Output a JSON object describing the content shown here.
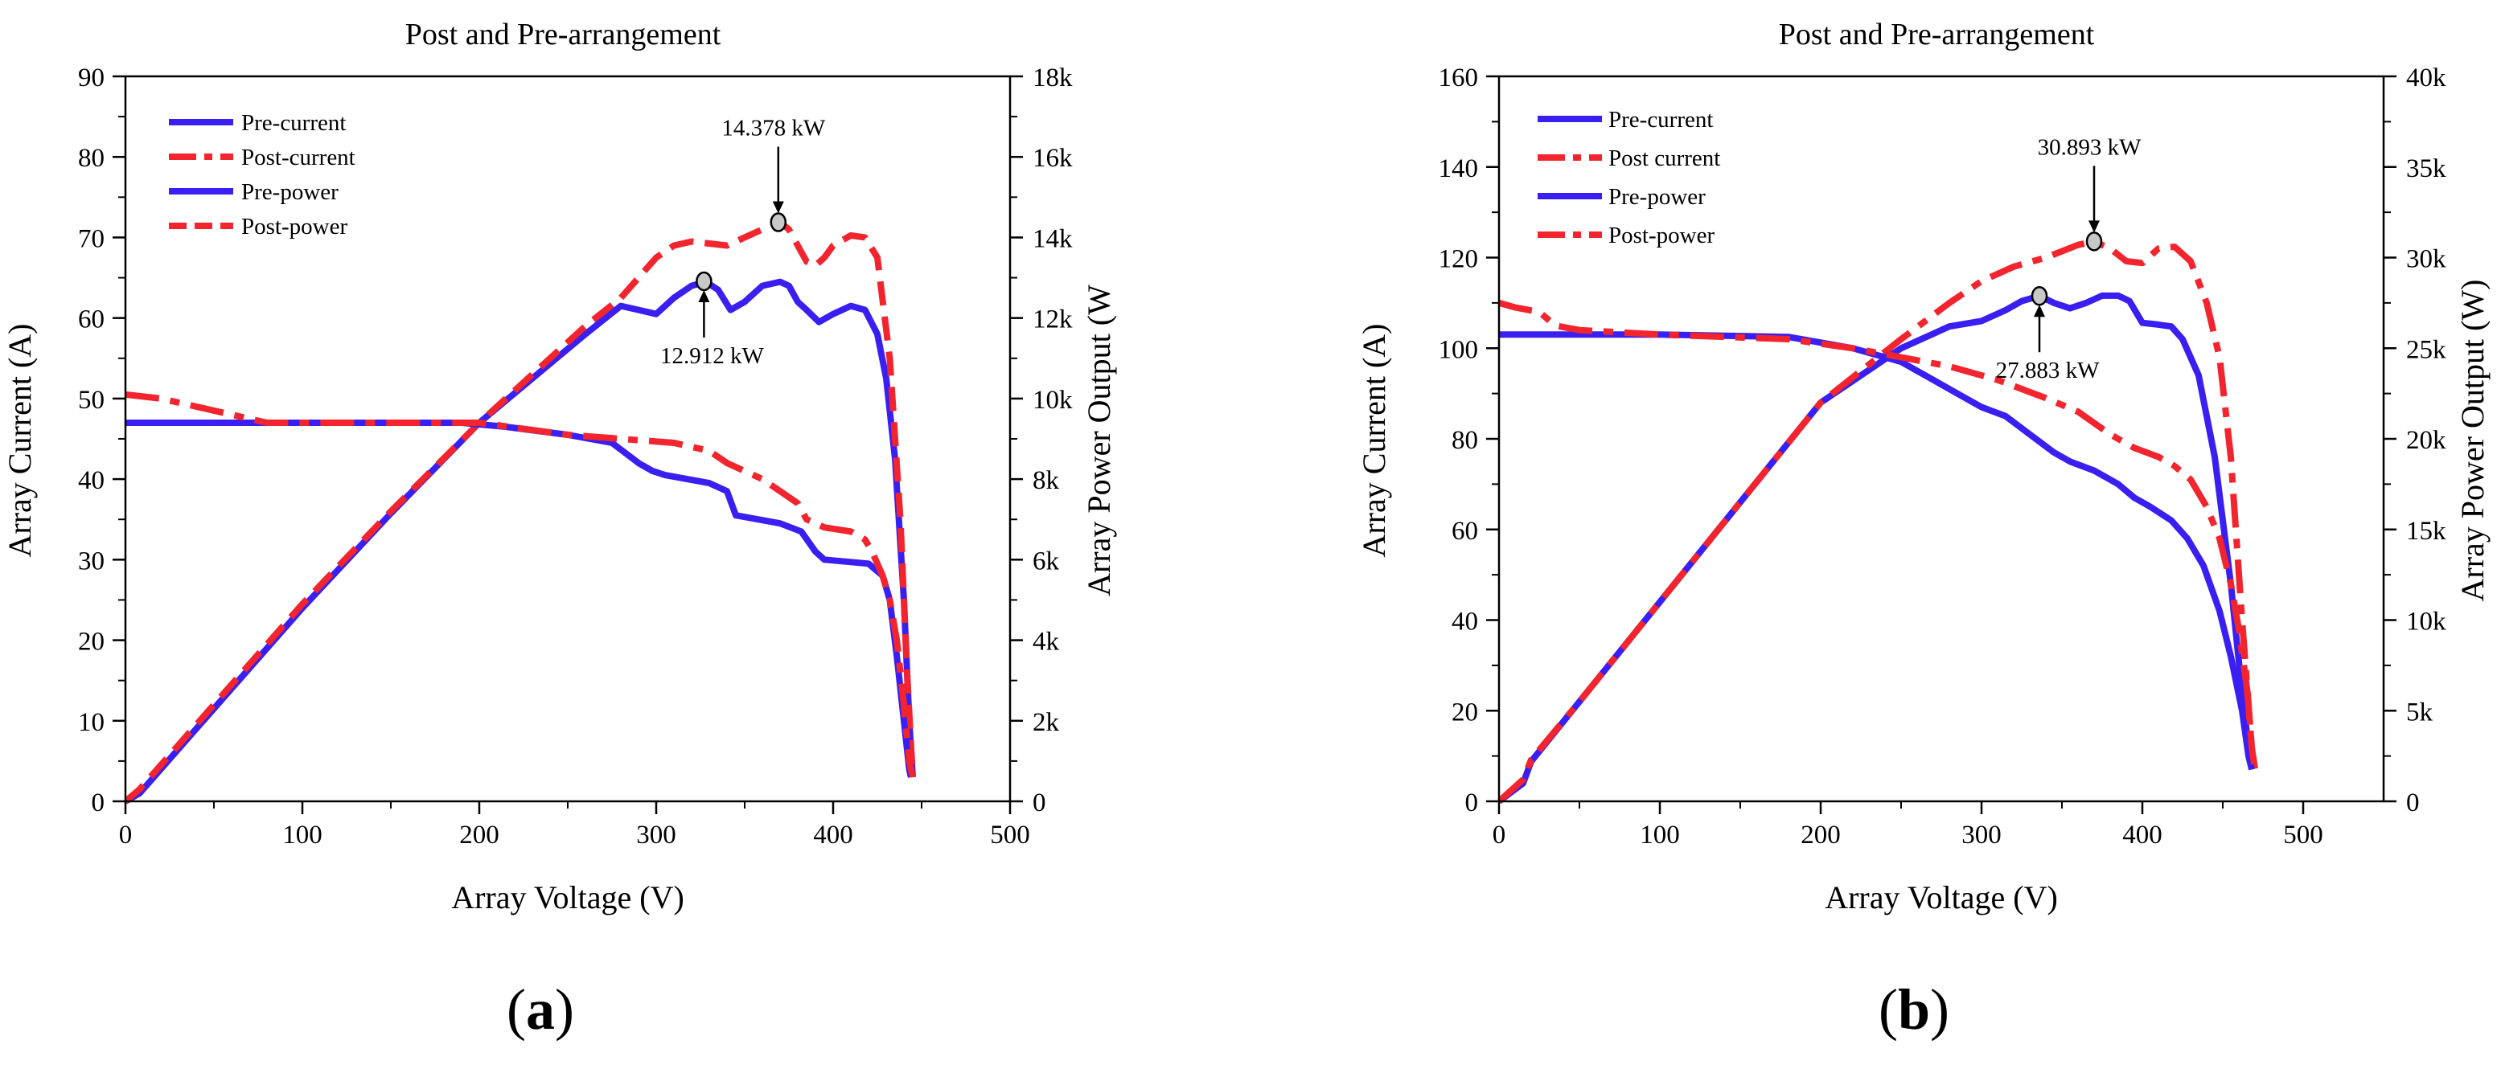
{
  "chart_data": [
    {
      "type": "line",
      "panel_label": {
        "open": "(",
        "letter": "a",
        "close": ")"
      },
      "title": "Post and Pre-arrangement",
      "xlabel": "Array Voltage (V)",
      "ylabel": "Array Current (A)",
      "y2label": "Array Power Output (W",
      "xlim": [
        0,
        500
      ],
      "ylim": [
        0,
        90
      ],
      "y2lim": [
        0,
        18000
      ],
      "xticks": [
        0,
        100,
        200,
        300,
        400,
        500
      ],
      "xtick_labels": [
        "0",
        "100",
        "200",
        "300",
        "400",
        "500"
      ],
      "yticks": [
        0,
        10,
        20,
        30,
        40,
        50,
        60,
        70,
        80,
        90
      ],
      "ytick_labels": [
        "0",
        "10",
        "20",
        "30",
        "40",
        "50",
        "60",
        "70",
        "80",
        "90"
      ],
      "y2ticks": [
        0,
        2000,
        4000,
        6000,
        8000,
        10000,
        12000,
        14000,
        16000,
        18000
      ],
      "y2tick_labels": [
        "0",
        "2k",
        "4k",
        "6k",
        "8k",
        "10k",
        "12k",
        "14k",
        "16k",
        "18k"
      ],
      "legend_position": "top-left",
      "series": [
        {
          "name": "Pre-current",
          "axis": "left",
          "color": "#3a1ff2",
          "style": "solid",
          "x": [
            0,
            100,
            190,
            215,
            250,
            275,
            290,
            298,
            305,
            330,
            340,
            345,
            370,
            382,
            390,
            395,
            420,
            428,
            432,
            436,
            440,
            443,
            444
          ],
          "y": [
            47,
            47,
            47,
            46.5,
            45.5,
            44.5,
            42,
            41,
            40.5,
            39.5,
            38.5,
            35.5,
            34.5,
            33.5,
            31,
            30,
            29.5,
            28,
            25,
            18,
            10,
            4,
            3
          ]
        },
        {
          "name": "Post-current",
          "axis": "left",
          "color": "#f2252e",
          "style": "dashdot",
          "x": [
            0,
            20,
            40,
            60,
            80,
            150,
            200,
            250,
            280,
            310,
            330,
            340,
            360,
            370,
            380,
            385,
            395,
            410,
            418,
            422,
            428,
            432,
            436,
            440,
            443,
            445
          ],
          "y": [
            50.5,
            50,
            49,
            48,
            47,
            47,
            47,
            45.5,
            45,
            44.5,
            43.5,
            42,
            40,
            38.5,
            37,
            35,
            34,
            33.5,
            32.5,
            31,
            28,
            25,
            20,
            12,
            5,
            3
          ]
        },
        {
          "name": "Pre-power",
          "axis": "right",
          "color": "#3a1ff2",
          "style": "solid",
          "x": [
            0,
            8,
            50,
            100,
            150,
            200,
            230,
            260,
            280,
            290,
            300,
            310,
            320,
            328,
            335,
            342,
            350,
            360,
            370,
            375,
            380,
            385,
            392,
            400,
            410,
            418,
            425,
            430,
            435,
            440,
            443,
            445
          ],
          "y": [
            0,
            200,
            2300,
            4800,
            7150,
            9400,
            10500,
            11600,
            12300,
            12200,
            12100,
            12500,
            12800,
            12900,
            12700,
            12200,
            12400,
            12800,
            12900,
            12800,
            12400,
            12200,
            11900,
            12100,
            12300,
            12200,
            11600,
            10500,
            8500,
            5000,
            2000,
            600
          ]
        },
        {
          "name": "Post-power",
          "axis": "right",
          "color": "#f2252e",
          "style": "dashed",
          "x": [
            0,
            8,
            50,
            100,
            150,
            200,
            230,
            260,
            280,
            290,
            300,
            310,
            320,
            330,
            340,
            350,
            360,
            370,
            375,
            380,
            385,
            390,
            395,
            400,
            410,
            418,
            425,
            432,
            438,
            442,
            445
          ],
          "y": [
            0,
            300,
            2400,
            4900,
            7200,
            9400,
            10600,
            11800,
            12500,
            13000,
            13500,
            13800,
            13900,
            13850,
            13800,
            14000,
            14200,
            14378,
            14200,
            13800,
            13400,
            13300,
            13500,
            13800,
            14050,
            14000,
            13500,
            11000,
            7000,
            3000,
            600
          ]
        }
      ],
      "annotations": [
        {
          "text": "14.378 kW",
          "x": 369,
          "y2": 14378,
          "label_position": "above"
        },
        {
          "text": "12.912 kW",
          "x": 327,
          "y2": 12912,
          "label_position": "below"
        }
      ]
    },
    {
      "type": "line",
      "panel_label": {
        "open": "(",
        "letter": "b",
        "close": ")"
      },
      "title": "Post and Pre-arrangement",
      "xlabel": "Array Voltage (V)",
      "ylabel": "Array Current (A)",
      "y2label": "Array Power Output (W)",
      "xlim": [
        0,
        550
      ],
      "ylim": [
        0,
        160
      ],
      "y2lim": [
        0,
        40000
      ],
      "xticks": [
        0,
        100,
        200,
        300,
        400,
        500
      ],
      "xtick_labels": [
        "0",
        "100",
        "200",
        "300",
        "400",
        "500"
      ],
      "yticks": [
        0,
        20,
        40,
        60,
        80,
        100,
        120,
        140,
        160
      ],
      "ytick_labels": [
        "0",
        "20",
        "40",
        "60",
        "80",
        "100",
        "120",
        "140",
        "160"
      ],
      "y2ticks": [
        0,
        5000,
        10000,
        15000,
        20000,
        25000,
        30000,
        35000,
        40000
      ],
      "y2tick_labels": [
        "0",
        "5k",
        "10k",
        "15k",
        "20k",
        "25k",
        "30k",
        "35k",
        "40k"
      ],
      "legend_position": "top-left",
      "series": [
        {
          "name": "Pre-current",
          "axis": "left",
          "color": "#3a1ff2",
          "style": "solid",
          "x": [
            0,
            100,
            180,
            220,
            250,
            270,
            290,
            300,
            315,
            330,
            345,
            355,
            370,
            385,
            395,
            405,
            418,
            428,
            438,
            448,
            455,
            462,
            466,
            468
          ],
          "y": [
            103,
            103,
            102.5,
            100,
            97,
            93,
            89,
            87,
            85,
            81,
            77,
            75,
            73,
            70,
            67,
            65,
            62,
            58,
            52,
            42,
            32,
            20,
            10,
            7
          ]
        },
        {
          "name": "Post current",
          "axis": "left",
          "color": "#f2252e",
          "style": "dashdot",
          "x": [
            0,
            10,
            25,
            35,
            50,
            100,
            180,
            220,
            250,
            280,
            310,
            340,
            360,
            380,
            395,
            410,
            420,
            430,
            440,
            448,
            455,
            460,
            465,
            468,
            470
          ],
          "y": [
            110,
            109,
            108,
            105,
            104,
            103,
            102,
            100,
            98,
            96,
            93,
            89,
            86,
            81,
            78,
            76,
            74,
            71,
            65,
            58,
            48,
            38,
            25,
            12,
            7
          ]
        },
        {
          "name": "Pre-power",
          "axis": "right",
          "color": "#3a1ff2",
          "style": "solid",
          "x": [
            0,
            15,
            20,
            50,
            100,
            150,
            200,
            250,
            280,
            300,
            315,
            325,
            336,
            345,
            355,
            365,
            375,
            385,
            392,
            400,
            410,
            418,
            425,
            435,
            445,
            455,
            462,
            466,
            468
          ],
          "y": [
            0,
            1000,
            2200,
            5500,
            11000,
            16500,
            22000,
            25000,
            26200,
            26500,
            27100,
            27600,
            27883,
            27500,
            27200,
            27500,
            27900,
            27900,
            27600,
            26400,
            26300,
            26200,
            25500,
            23500,
            19000,
            12000,
            6000,
            3000,
            1800
          ]
        },
        {
          "name": "Post-power",
          "axis": "right",
          "color": "#f2252e",
          "style": "dashdot",
          "x": [
            0,
            15,
            20,
            50,
            100,
            150,
            200,
            250,
            280,
            300,
            320,
            340,
            360,
            370,
            380,
            390,
            400,
            410,
            420,
            430,
            440,
            448,
            455,
            462,
            468,
            470
          ],
          "y": [
            0,
            1200,
            2300,
            5500,
            11000,
            16500,
            22000,
            25500,
            27500,
            28700,
            29500,
            30000,
            30700,
            30893,
            30500,
            29800,
            29700,
            30500,
            30600,
            29800,
            27500,
            24500,
            19000,
            10000,
            3000,
            1800
          ]
        }
      ],
      "annotations": [
        {
          "text": "30.893 kW",
          "x": 370,
          "y2": 30893,
          "label_position": "above"
        },
        {
          "text": "27.883 kW",
          "x": 336,
          "y2": 27883,
          "label_position": "below"
        }
      ]
    }
  ]
}
